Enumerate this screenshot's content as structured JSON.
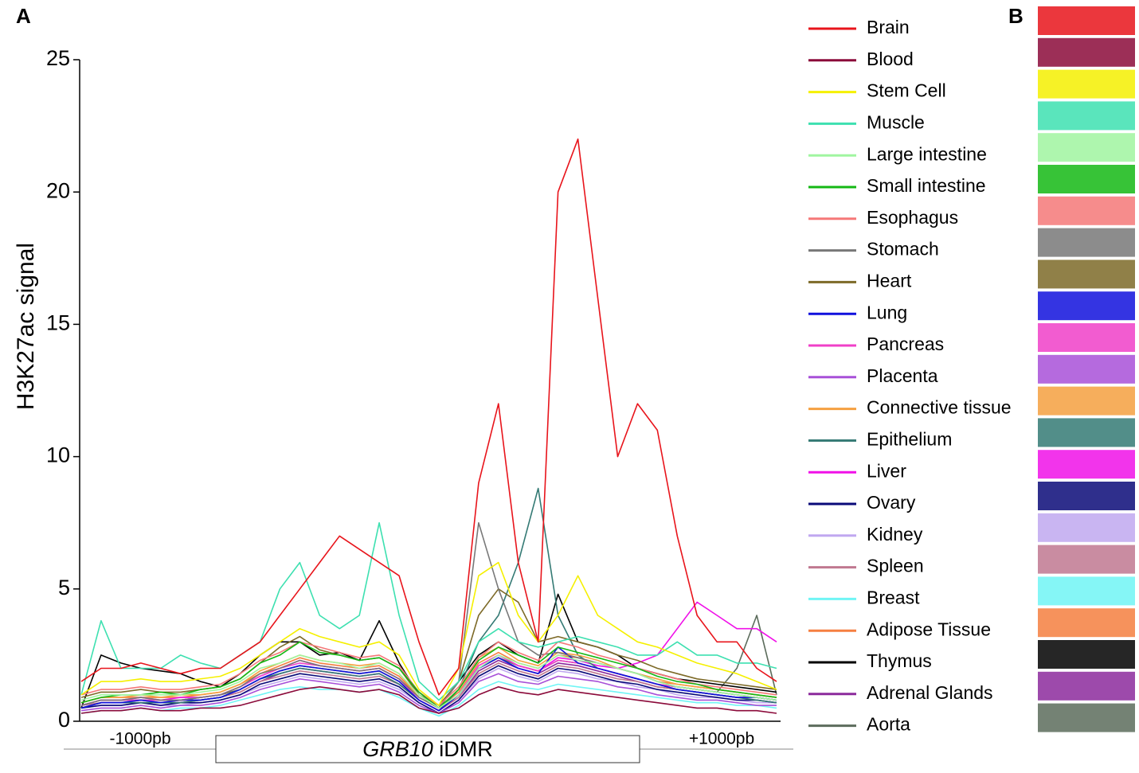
{
  "chart_data": {
    "type": "line",
    "panel_a_label": "A",
    "panel_b_label": "B",
    "y_label": "H3K27ac signal",
    "left_flank_label": "-1000pb",
    "right_flank_label": "+1000pb",
    "region_gene": "GRB10",
    "region_name": "iDMR",
    "ylim": [
      0,
      25
    ],
    "yticks": [
      0,
      5,
      10,
      15,
      20,
      25
    ],
    "categories": [
      null,
      null,
      null,
      null,
      null,
      null,
      null,
      null,
      null,
      null,
      null,
      null,
      null,
      null,
      null,
      null,
      null,
      null,
      null,
      null,
      null,
      null,
      null,
      null,
      null,
      null,
      null,
      null,
      null,
      null,
      null,
      null,
      null,
      null,
      null,
      null
    ],
    "series": [
      {
        "name": "Brain",
        "color": "#e8141b",
        "values": [
          1.5,
          2,
          2,
          2.2,
          2,
          1.8,
          2,
          2,
          2.5,
          3,
          4,
          5,
          6,
          7,
          6.5,
          6,
          5.5,
          3,
          1,
          2,
          9,
          12,
          6,
          3,
          20,
          22,
          16,
          10,
          12,
          11,
          7,
          4,
          3,
          3,
          2,
          1.5
        ]
      },
      {
        "name": "Blood",
        "color": "#8b0a3a",
        "values": [
          0.3,
          0.4,
          0.4,
          0.5,
          0.4,
          0.4,
          0.5,
          0.5,
          0.6,
          0.8,
          1,
          1.2,
          1.3,
          1.2,
          1.1,
          1.2,
          1,
          0.5,
          0.3,
          0.5,
          1,
          1.3,
          1.1,
          1,
          1.2,
          1.1,
          1,
          0.9,
          0.8,
          0.7,
          0.6,
          0.5,
          0.5,
          0.4,
          0.4,
          0.3
        ]
      },
      {
        "name": "Stem Cell",
        "color": "#f5f000",
        "values": [
          1,
          1.5,
          1.5,
          1.6,
          1.5,
          1.5,
          1.6,
          1.7,
          2,
          2.5,
          3,
          3.5,
          3.2,
          3,
          2.8,
          3,
          2.5,
          1.2,
          0.6,
          2,
          5.5,
          6,
          4,
          3,
          4,
          5.5,
          4,
          3.5,
          3,
          2.8,
          2.5,
          2.2,
          2,
          1.8,
          1.5,
          1.2
        ]
      },
      {
        "name": "Muscle",
        "color": "#3de0b0",
        "values": [
          1,
          3.8,
          2,
          2,
          2,
          2.5,
          2.2,
          2,
          2.5,
          3,
          5,
          6,
          4,
          3.5,
          4,
          7.5,
          4,
          1.5,
          0.8,
          1.5,
          3,
          3.5,
          3,
          2.8,
          3,
          3.2,
          3,
          2.8,
          2.5,
          2.5,
          3,
          2.5,
          2.5,
          2.2,
          2.2,
          2
        ]
      },
      {
        "name": "Large intestine",
        "color": "#a0f5a0",
        "values": [
          0.8,
          1,
          1,
          1,
          1,
          1,
          1.1,
          1.2,
          1.5,
          2,
          2.2,
          2.5,
          2.3,
          2.2,
          2,
          2.2,
          1.8,
          1,
          0.5,
          1,
          2,
          2.5,
          2.2,
          2,
          2.5,
          2.3,
          2.2,
          2,
          1.8,
          1.5,
          1.3,
          1.2,
          1.1,
          1,
          0.9,
          0.8
        ]
      },
      {
        "name": "Small intestine",
        "color": "#14b814",
        "values": [
          0.7,
          0.9,
          1,
          1,
          1.1,
          1,
          1.2,
          1.3,
          1.6,
          2.2,
          2.5,
          3,
          2.6,
          2.5,
          2.3,
          2.4,
          2,
          1.1,
          0.5,
          1.2,
          2.3,
          2.8,
          2.5,
          2.2,
          2.8,
          2.6,
          2.4,
          2.2,
          2,
          1.7,
          1.5,
          1.4,
          1.2,
          1.1,
          1,
          0.9
        ]
      },
      {
        "name": "Esophagus",
        "color": "#f57878",
        "values": [
          1,
          1.2,
          1.2,
          1.3,
          1.2,
          1.2,
          1.3,
          1.4,
          1.8,
          2.3,
          2.6,
          3,
          2.8,
          2.6,
          2.4,
          2.5,
          2.1,
          1.1,
          0.6,
          1.3,
          2.4,
          3,
          2.6,
          2.3,
          3,
          2.8,
          2.5,
          2.3,
          2,
          1.8,
          1.6,
          1.4,
          1.3,
          1.2,
          1.1,
          1
        ]
      },
      {
        "name": "Stomach",
        "color": "#787878",
        "values": [
          0.6,
          0.8,
          0.8,
          0.9,
          0.8,
          0.8,
          0.9,
          1,
          1.3,
          1.8,
          2,
          2.3,
          2.1,
          2,
          1.9,
          2,
          1.6,
          0.9,
          0.5,
          1.5,
          7.5,
          5,
          3,
          2.5,
          2.6,
          2.4,
          2.2,
          2,
          1.8,
          1.5,
          1.3,
          1.2,
          1.1,
          1,
          0.9,
          0.8
        ]
      },
      {
        "name": "Heart",
        "color": "#7d6a28",
        "values": [
          0.9,
          1.1,
          1.1,
          1.2,
          1.1,
          1.1,
          1.2,
          1.3,
          1.6,
          2.2,
          2.8,
          3.2,
          2.7,
          2.5,
          2.3,
          2.4,
          2,
          1,
          0.6,
          1.5,
          4,
          5,
          4.5,
          3,
          3.2,
          3,
          2.8,
          2.5,
          2.3,
          2,
          1.8,
          1.6,
          1.5,
          1.4,
          1.3,
          1.2
        ]
      },
      {
        "name": "Lung",
        "color": "#1010dd",
        "values": [
          0.5,
          0.7,
          0.7,
          0.8,
          0.7,
          0.8,
          0.8,
          0.9,
          1.2,
          1.6,
          1.9,
          2.1,
          2,
          1.9,
          1.8,
          1.9,
          1.5,
          0.8,
          0.4,
          1,
          2,
          2.4,
          2,
          1.8,
          2.8,
          2.2,
          2,
          1.8,
          1.6,
          1.4,
          1.2,
          1.1,
          1,
          0.9,
          0.9,
          0.8
        ]
      },
      {
        "name": "Pancreas",
        "color": "#f040c8",
        "values": [
          0.6,
          0.8,
          0.8,
          0.8,
          0.8,
          0.8,
          0.9,
          1,
          1.3,
          1.7,
          2,
          2.2,
          2.1,
          2,
          1.9,
          2,
          1.6,
          0.8,
          0.4,
          1,
          2.1,
          2.5,
          2.1,
          1.9,
          2.3,
          2.2,
          2,
          1.8,
          1.6,
          1.4,
          1.3,
          1.2,
          1.1,
          1,
          0.9,
          0.8
        ]
      },
      {
        "name": "Placenta",
        "color": "#a850d8",
        "values": [
          0.4,
          0.5,
          0.5,
          0.6,
          0.5,
          0.6,
          0.6,
          0.7,
          0.9,
          1.2,
          1.4,
          1.6,
          1.5,
          1.4,
          1.3,
          1.4,
          1.1,
          0.6,
          0.3,
          0.7,
          1.5,
          1.8,
          1.5,
          1.4,
          1.7,
          1.6,
          1.5,
          1.3,
          1.2,
          1,
          0.9,
          0.8,
          0.8,
          0.7,
          0.6,
          0.6
        ]
      },
      {
        "name": "Connective tissue",
        "color": "#f5a040",
        "values": [
          0.7,
          0.9,
          0.9,
          1,
          0.9,
          1,
          1,
          1.1,
          1.4,
          1.9,
          2.2,
          2.5,
          2.3,
          2.2,
          2.1,
          2.2,
          1.8,
          0.9,
          0.5,
          1.2,
          2.4,
          2.8,
          2.3,
          2.1,
          2.6,
          2.5,
          2.3,
          2,
          1.8,
          1.6,
          1.4,
          1.3,
          1.2,
          1.1,
          1,
          0.9
        ]
      },
      {
        "name": "Epithelium",
        "color": "#347a74",
        "values": [
          0.5,
          0.7,
          0.7,
          0.7,
          0.7,
          0.7,
          0.8,
          0.9,
          1.2,
          1.6,
          1.8,
          2,
          1.9,
          1.8,
          1.7,
          1.8,
          1.4,
          0.8,
          0.4,
          1.2,
          3,
          4,
          6,
          8.8,
          4,
          2.5,
          2,
          1.8,
          1.6,
          1.4,
          1.2,
          1.1,
          1,
          0.9,
          0.8,
          0.7
        ]
      },
      {
        "name": "Liver",
        "color": "#f010e8",
        "values": [
          0.6,
          0.8,
          0.8,
          0.9,
          0.8,
          0.9,
          0.9,
          1,
          1.3,
          1.7,
          2,
          2.3,
          2.1,
          2,
          1.9,
          2,
          1.6,
          0.8,
          0.4,
          1,
          2.1,
          2.5,
          2.1,
          1.9,
          2.4,
          2.3,
          2.1,
          2,
          2.2,
          2.5,
          3.5,
          4.5,
          4,
          3.5,
          3.5,
          3
        ]
      },
      {
        "name": "Ovary",
        "color": "#0a0a78",
        "values": [
          0.5,
          0.6,
          0.6,
          0.7,
          0.6,
          0.7,
          0.7,
          0.8,
          1,
          1.4,
          1.6,
          1.8,
          1.7,
          1.6,
          1.5,
          1.6,
          1.3,
          0.7,
          0.3,
          0.8,
          1.7,
          2.1,
          1.8,
          1.6,
          2,
          1.9,
          1.7,
          1.5,
          1.4,
          1.2,
          1.1,
          1,
          0.9,
          0.8,
          0.8,
          0.7
        ]
      },
      {
        "name": "Kidney",
        "color": "#c0a8f0",
        "values": [
          0.5,
          0.6,
          0.6,
          0.7,
          0.6,
          0.6,
          0.7,
          0.8,
          1,
          1.3,
          1.5,
          1.7,
          1.6,
          1.5,
          1.4,
          1.5,
          1.2,
          0.7,
          0.3,
          0.8,
          1.6,
          2,
          1.7,
          1.5,
          1.9,
          1.8,
          1.6,
          1.5,
          1.3,
          1.2,
          1,
          0.9,
          0.9,
          0.8,
          0.7,
          0.7
        ]
      },
      {
        "name": "Spleen",
        "color": "#c07890",
        "values": [
          0.6,
          0.7,
          0.7,
          0.8,
          0.7,
          0.8,
          0.8,
          0.9,
          1.1,
          1.5,
          1.7,
          1.9,
          1.8,
          1.7,
          1.6,
          1.7,
          1.4,
          0.8,
          0.4,
          0.9,
          1.8,
          2.2,
          1.9,
          1.7,
          2.1,
          2,
          1.8,
          1.6,
          1.5,
          1.3,
          1.2,
          1.1,
          1,
          0.9,
          0.9,
          0.8
        ]
      },
      {
        "name": "Breast",
        "color": "#70f5f5",
        "values": [
          0.3,
          0.4,
          0.4,
          0.5,
          0.4,
          0.5,
          0.5,
          0.6,
          0.8,
          1,
          1.2,
          1.3,
          1.2,
          1.2,
          1.1,
          1.2,
          0.9,
          0.5,
          0.2,
          0.6,
          1.2,
          1.5,
          1.3,
          1.2,
          1.4,
          1.3,
          1.2,
          1.1,
          1,
          0.9,
          0.8,
          0.7,
          0.7,
          0.6,
          0.6,
          0.5
        ]
      },
      {
        "name": "Adipose Tissue",
        "color": "#f57f40",
        "values": [
          0.7,
          0.9,
          0.9,
          0.9,
          0.9,
          0.9,
          1,
          1.1,
          1.4,
          1.8,
          2.1,
          2.4,
          2.2,
          2.1,
          2,
          2.1,
          1.7,
          0.9,
          0.5,
          1.1,
          2.2,
          2.6,
          2.2,
          2,
          2.5,
          2.4,
          2.2,
          2,
          1.8,
          1.5,
          1.4,
          1.3,
          1.2,
          1.1,
          1,
          0.9
        ]
      },
      {
        "name": "Thymus",
        "color": "#000000",
        "values": [
          0.5,
          2.5,
          2.2,
          2,
          1.9,
          1.8,
          1.5,
          1.3,
          1.8,
          2.5,
          3,
          3,
          2.5,
          2.6,
          2.3,
          3.8,
          2.2,
          1,
          0.5,
          1.5,
          2.5,
          3,
          2.5,
          2.2,
          4.8,
          3,
          2.8,
          2.5,
          2,
          1.8,
          1.6,
          1.5,
          1.4,
          1.3,
          1.2,
          1.1
        ]
      },
      {
        "name": "Adrenal Glands",
        "color": "#8c2a9c",
        "values": [
          0.5,
          0.7,
          0.7,
          0.7,
          0.7,
          0.7,
          0.8,
          0.9,
          1.1,
          1.5,
          1.8,
          2,
          1.9,
          1.8,
          1.7,
          1.8,
          1.4,
          0.8,
          0.4,
          0.9,
          1.9,
          2.3,
          2,
          1.8,
          2.2,
          2.1,
          1.9,
          1.7,
          1.5,
          1.3,
          1.2,
          1.1,
          1,
          0.9,
          0.9,
          0.8
        ]
      },
      {
        "name": "Aorta",
        "color": "#5c6c5c",
        "values": [
          0.6,
          0.8,
          0.8,
          0.8,
          0.8,
          0.8,
          0.9,
          1,
          1.2,
          1.6,
          1.9,
          2.1,
          2,
          1.9,
          1.8,
          1.9,
          1.5,
          0.8,
          0.4,
          1,
          2,
          2.4,
          2.1,
          1.9,
          2.3,
          2.2,
          2,
          1.8,
          1.6,
          1.4,
          1.3,
          1.2,
          1.1,
          2,
          4,
          1
        ]
      }
    ]
  }
}
